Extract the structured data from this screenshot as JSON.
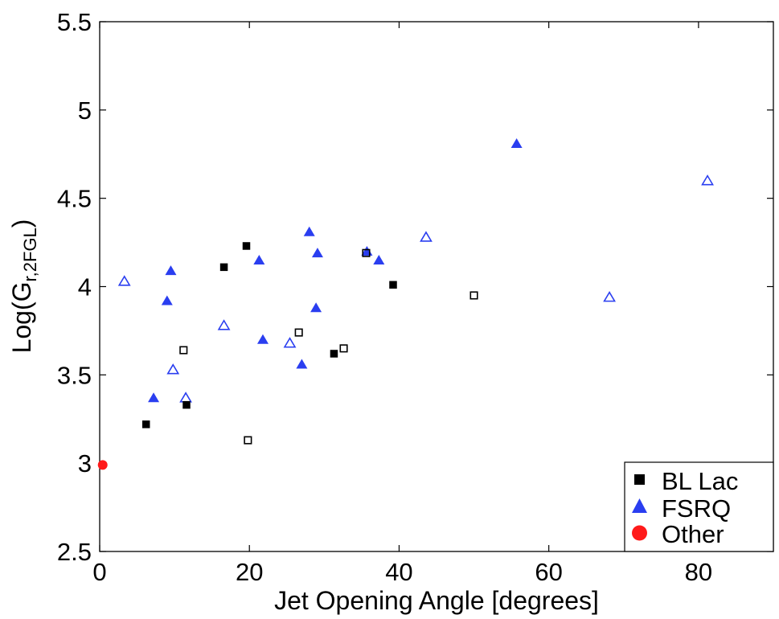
{
  "chart_data": {
    "type": "scatter",
    "xlabel": "Jet Opening Angle [degrees]",
    "ylabel": {
      "base": "Log(G",
      "subscript": "r,2FGL",
      "close": ")"
    },
    "xlim": [
      0,
      90
    ],
    "ylim": [
      2.5,
      5.5
    ],
    "xticks": [
      "0",
      "20",
      "40",
      "60",
      "80"
    ],
    "yticks": [
      "2.5",
      "3",
      "3.5",
      "4",
      "4.5",
      "5",
      "5.5"
    ],
    "grid": false,
    "legend_position": "bottom-right",
    "series": [
      {
        "name": "BL Lac",
        "marker": "square",
        "color": "#000000",
        "filled": [
          {
            "x": 6.2,
            "y": 3.22
          },
          {
            "x": 11.6,
            "y": 3.33
          },
          {
            "x": 16.6,
            "y": 4.11
          },
          {
            "x": 19.6,
            "y": 4.23
          },
          {
            "x": 31.3,
            "y": 3.62
          },
          {
            "x": 39.2,
            "y": 4.01
          }
        ],
        "open": [
          {
            "x": 11.2,
            "y": 3.64
          },
          {
            "x": 19.8,
            "y": 3.13
          },
          {
            "x": 26.6,
            "y": 3.74
          },
          {
            "x": 32.6,
            "y": 3.65
          },
          {
            "x": 35.6,
            "y": 4.19
          },
          {
            "x": 50.0,
            "y": 3.95
          }
        ]
      },
      {
        "name": "FSRQ",
        "marker": "triangle",
        "color": "#2a3ef0",
        "filled": [
          {
            "x": 7.2,
            "y": 3.37
          },
          {
            "x": 9.0,
            "y": 3.92
          },
          {
            "x": 9.5,
            "y": 4.09
          },
          {
            "x": 21.3,
            "y": 4.15
          },
          {
            "x": 21.8,
            "y": 3.7
          },
          {
            "x": 27.0,
            "y": 3.56
          },
          {
            "x": 28.0,
            "y": 4.31
          },
          {
            "x": 28.9,
            "y": 3.88
          },
          {
            "x": 29.1,
            "y": 4.19
          },
          {
            "x": 35.7,
            "y": 4.2
          },
          {
            "x": 37.3,
            "y": 4.15
          },
          {
            "x": 55.7,
            "y": 4.81
          }
        ],
        "open": [
          {
            "x": 3.3,
            "y": 4.03
          },
          {
            "x": 9.8,
            "y": 3.53
          },
          {
            "x": 11.5,
            "y": 3.37
          },
          {
            "x": 16.6,
            "y": 3.78
          },
          {
            "x": 25.4,
            "y": 3.68
          },
          {
            "x": 43.6,
            "y": 4.28
          },
          {
            "x": 68.1,
            "y": 3.94
          },
          {
            "x": 81.2,
            "y": 4.6
          }
        ]
      },
      {
        "name": "Other",
        "marker": "circle",
        "color": "#ff1a1a",
        "filled": [
          {
            "x": 0.4,
            "y": 2.99
          }
        ],
        "open": []
      }
    ]
  }
}
